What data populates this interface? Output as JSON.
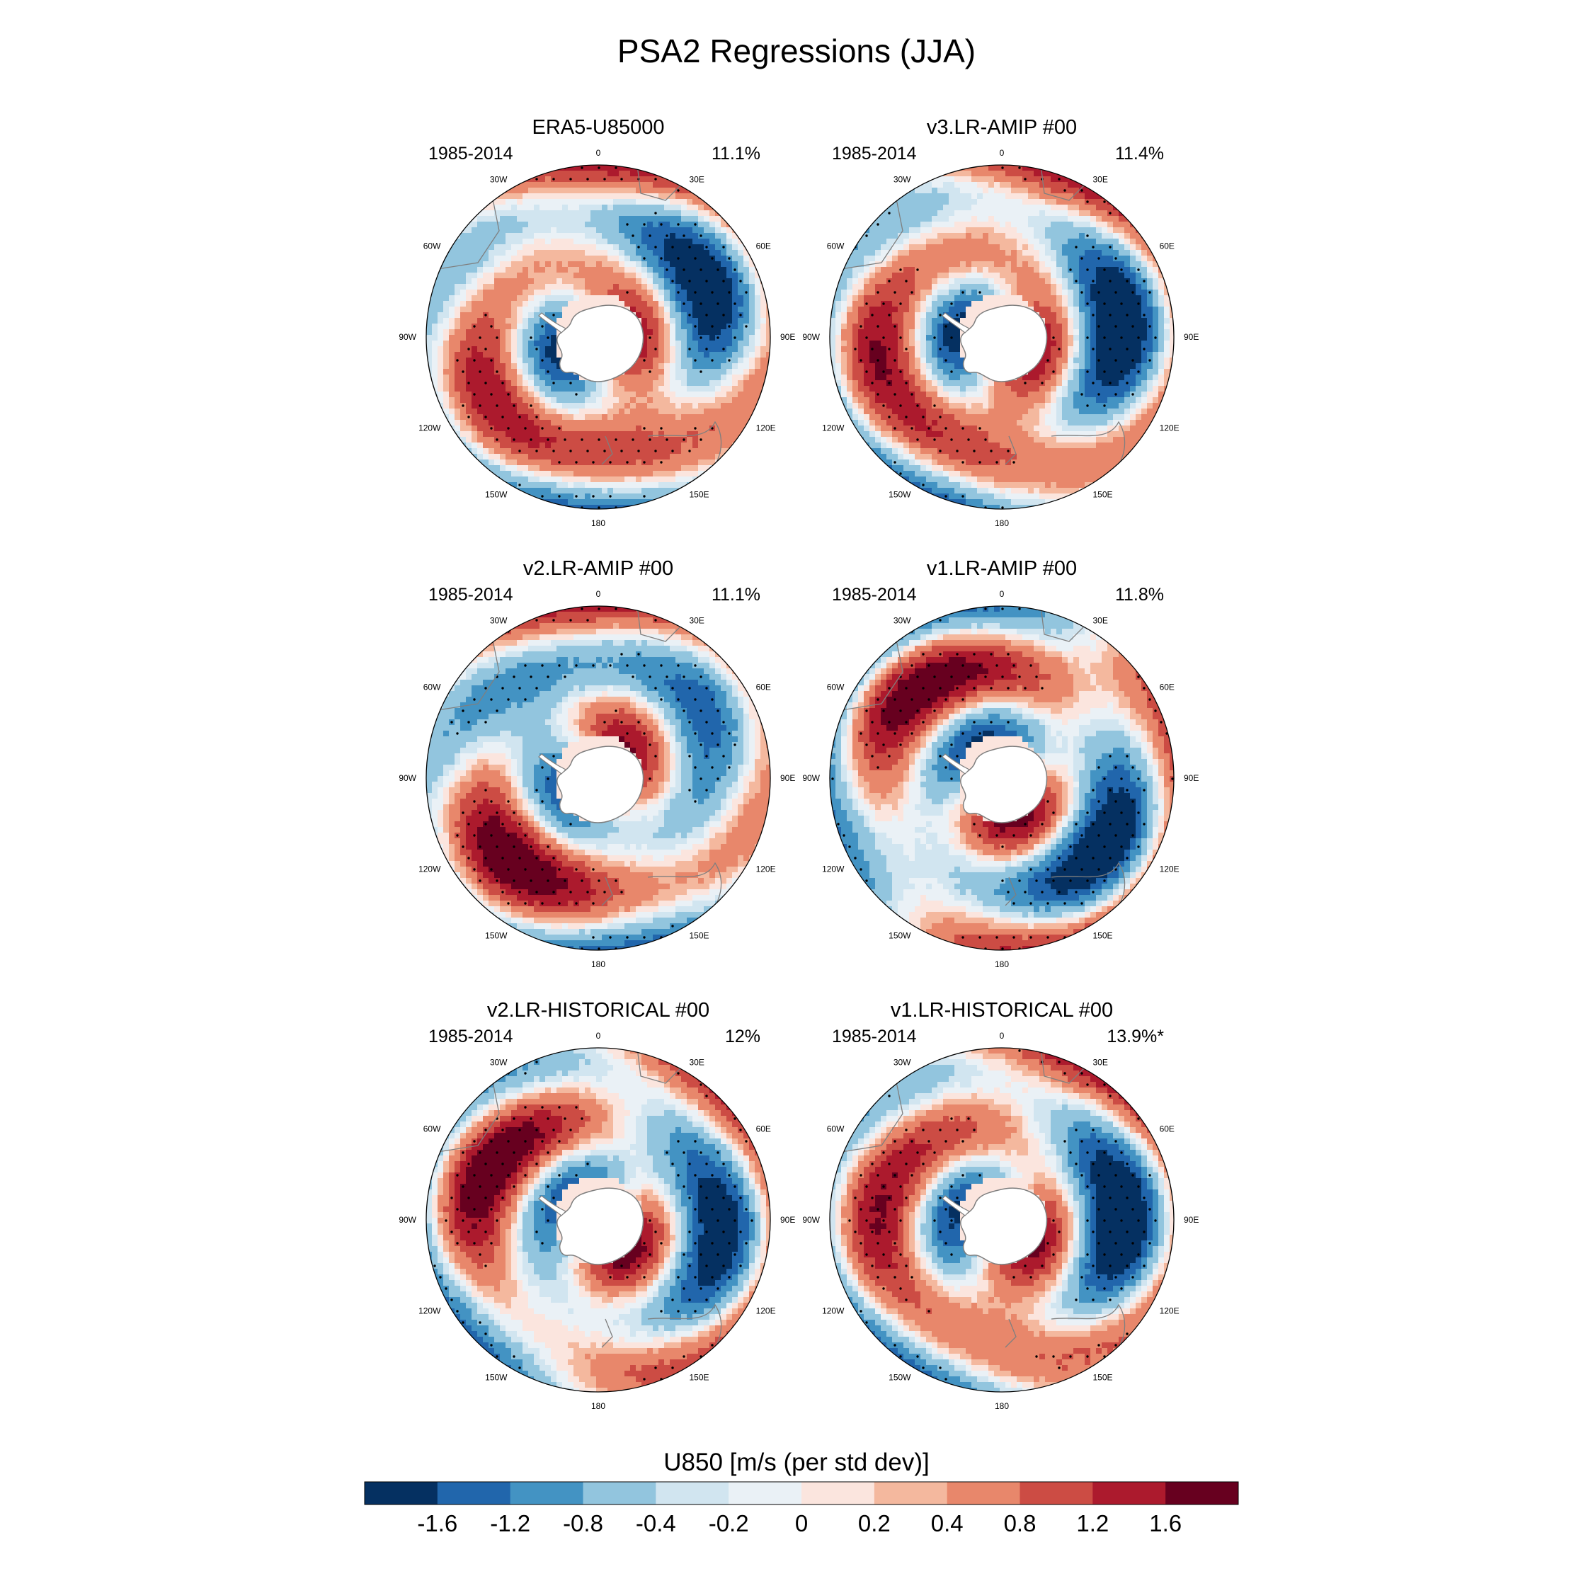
{
  "title": "PSA2 Regressions (JJA)",
  "longitude_labels": [
    "0",
    "30E",
    "60E",
    "90E",
    "120E",
    "150E",
    "180",
    "150W",
    "120W",
    "90W",
    "60W",
    "30W"
  ],
  "panels": [
    {
      "title": "ERA5-U85000",
      "years": "1985-2014",
      "percent": "11.1%",
      "pattern": {
        "amp1": 1.6,
        "phase1": 0,
        "amp2": 0.45,
        "phase2": 1.2,
        "spiral": 0.045,
        "ring": 24,
        "bias": 0
      }
    },
    {
      "title": "v3.LR-AMIP  #00",
      "years": "1985-2014",
      "percent": "11.4%",
      "pattern": {
        "amp1": 1.7,
        "phase1": -0.55,
        "amp2": 0.5,
        "phase2": 0.4,
        "spiral": 0.05,
        "ring": 25,
        "bias": 0
      }
    },
    {
      "title": "v2.LR-AMIP  #00",
      "years": "1985-2014",
      "percent": "11.1%",
      "pattern": {
        "amp1": 1.5,
        "phase1": 0.35,
        "amp2": 0.5,
        "phase2": -0.8,
        "spiral": 0.04,
        "ring": 23,
        "bias": 0
      }
    },
    {
      "title": "v1.LR-AMIP  #00",
      "years": "1985-2014",
      "percent": "11.8%",
      "pattern": {
        "amp1": 1.8,
        "phase1": -1.35,
        "amp2": 0.35,
        "phase2": 0.2,
        "spiral": 0.03,
        "ring": 30,
        "bias": -0.05
      }
    },
    {
      "title": "v2.LR-HISTORICAL  #00",
      "years": "1985-2014",
      "percent": "12%",
      "pattern": {
        "amp1": 1.7,
        "phase1": -1.0,
        "amp2": 0.5,
        "phase2": 1.5,
        "spiral": 0.045,
        "ring": 24,
        "bias": 0
      }
    },
    {
      "title": "v1.LR-HISTORICAL  #00",
      "years": "1985-2014",
      "percent": "13.9%*",
      "pattern": {
        "amp1": 1.7,
        "phase1": -0.75,
        "amp2": 0.55,
        "phase2": 0.9,
        "spiral": 0.05,
        "ring": 25,
        "bias": 0
      }
    }
  ],
  "colorbar": {
    "title": "U850 [m/s (per std dev)]",
    "levels": [
      -1.6,
      -1.2,
      -0.8,
      -0.4,
      -0.2,
      0,
      0.2,
      0.4,
      0.8,
      1.2,
      1.6
    ],
    "labels": [
      "-1.6",
      "-1.2",
      "-0.8",
      "-0.4",
      "-0.2",
      "0",
      "0.2",
      "0.4",
      "0.8",
      "1.2",
      "1.6"
    ],
    "colors": [
      "#053061",
      "#2166ac",
      "#4393c3",
      "#92c5de",
      "#d1e5f0",
      "#eaf1f6",
      "#fbe5de",
      "#f4b89e",
      "#e8876b",
      "#cc4c44",
      "#ac1a2d",
      "#67001f"
    ]
  },
  "styling": {
    "coast_color": "#7f7f7f",
    "land_color": "#ffffff",
    "stipple_color": "#000000"
  }
}
